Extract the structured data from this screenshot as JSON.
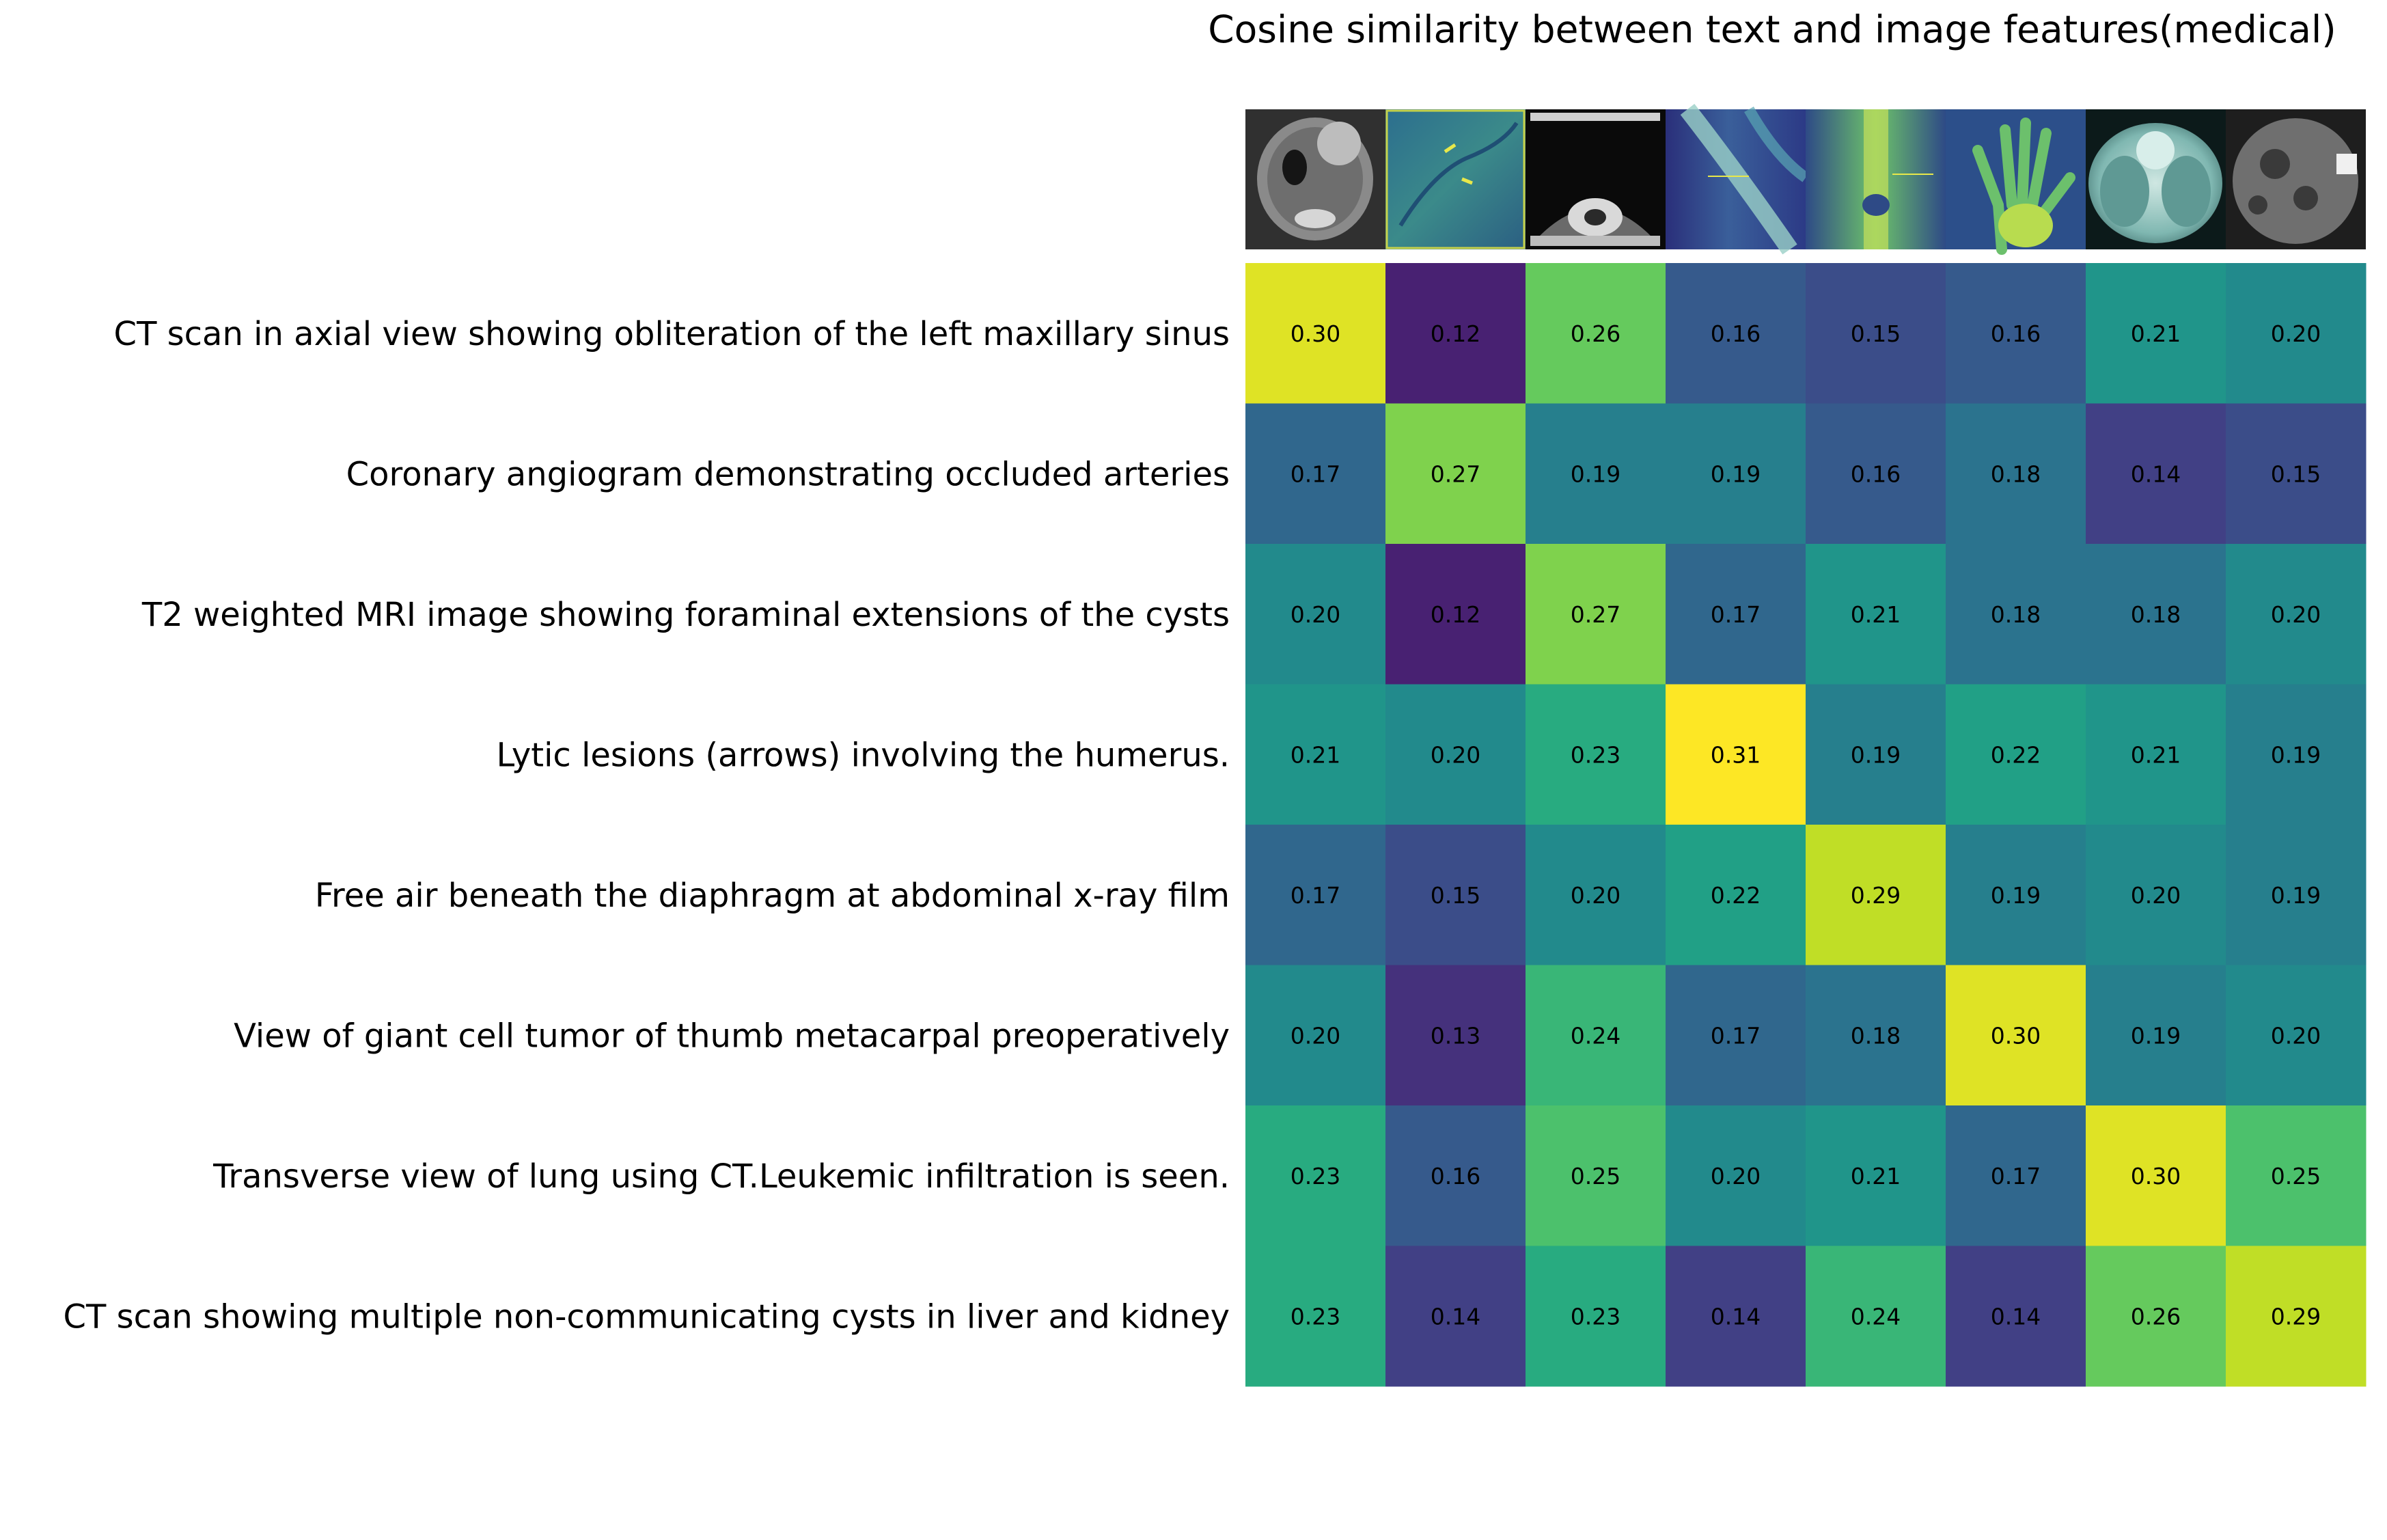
{
  "chart_data": {
    "type": "heatmap",
    "title": "Cosine similarity between text and image features(medical)",
    "rows": [
      "CT scan in axial view showing obliteration of the left maxillary sinus",
      "Coronary angiogram demonstrating occluded arteries",
      "T2 weighted MRI image showing foraminal extensions of the cysts",
      "Lytic lesions (arrows) involving the humerus.",
      "Free air beneath the diaphragm at abdominal x-ray film",
      "View of giant cell tumor of thumb metacarpal preoperatively",
      "Transverse view of lung using CT.Leukemic infiltration is seen.",
      "CT scan showing multiple non-communicating cysts in liver and kidney"
    ],
    "columns": [
      "ct-sinus-thumbnail",
      "angiogram-thumbnail",
      "mri-cysts-thumbnail",
      "humerus-xray-thumbnail",
      "abdominal-xray-thumbnail",
      "hand-xray-thumbnail",
      "lung-ct-thumbnail",
      "liver-kidney-ct-thumbnail"
    ],
    "values": [
      [
        0.3,
        0.12,
        0.26,
        0.16,
        0.15,
        0.16,
        0.21,
        0.2
      ],
      [
        0.17,
        0.27,
        0.19,
        0.19,
        0.16,
        0.18,
        0.14,
        0.15
      ],
      [
        0.2,
        0.12,
        0.27,
        0.17,
        0.21,
        0.18,
        0.18,
        0.2
      ],
      [
        0.21,
        0.2,
        0.23,
        0.31,
        0.19,
        0.22,
        0.21,
        0.19
      ],
      [
        0.17,
        0.15,
        0.2,
        0.22,
        0.29,
        0.19,
        0.2,
        0.19
      ],
      [
        0.2,
        0.13,
        0.24,
        0.17,
        0.18,
        0.3,
        0.19,
        0.2
      ],
      [
        0.23,
        0.16,
        0.25,
        0.2,
        0.21,
        0.17,
        0.3,
        0.25
      ],
      [
        0.23,
        0.14,
        0.23,
        0.14,
        0.24,
        0.14,
        0.26,
        0.29
      ]
    ],
    "value_format": "0.00",
    "color_range": [
      0.1,
      0.31
    ],
    "colormap": "viridis",
    "legend": "none"
  }
}
